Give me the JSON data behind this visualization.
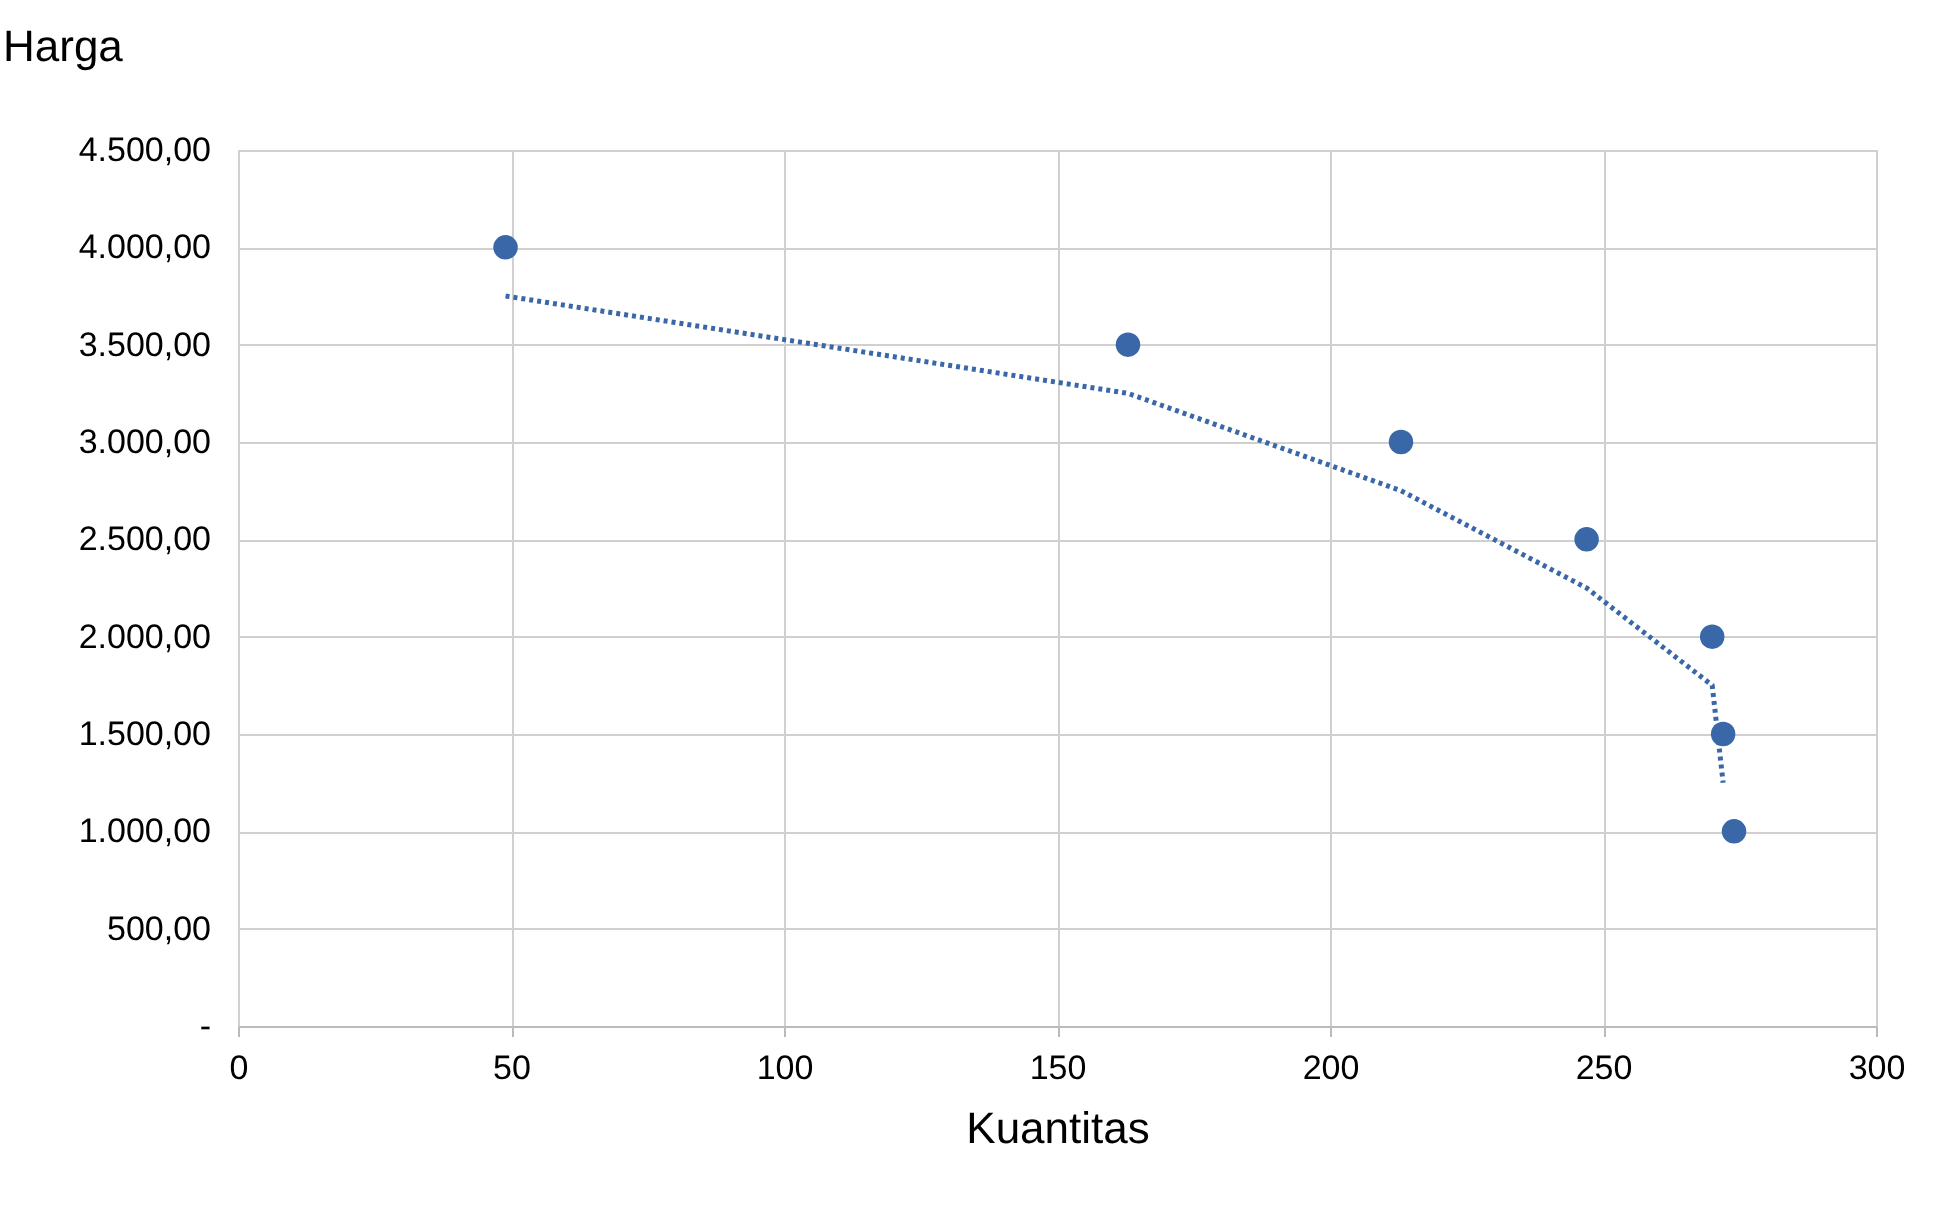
{
  "chart_data": {
    "type": "scatter",
    "xlabel": "Kuantitas",
    "ylabel": "Harga",
    "series": [
      {
        "color": "#3a67a8",
        "x": [
          49,
          163,
          213,
          247,
          270,
          272,
          274
        ],
        "values": [
          4000,
          3500,
          3000,
          2500,
          2000,
          1500,
          1000
        ]
      },
      {
        "type": "line",
        "color": "#3a67a8",
        "line_style": "dotted",
        "marker": "none",
        "x": [
          49,
          163,
          213,
          247,
          270,
          272
        ],
        "values": [
          3750,
          3250,
          2750,
          2250,
          1750,
          1250
        ]
      }
    ],
    "xlim": [
      0,
      300
    ],
    "xticks": [
      0,
      50,
      100,
      150,
      200,
      250,
      300
    ],
    "ylim": [
      0,
      4500
    ],
    "yticks": [
      {
        "value": 0,
        "label": "-"
      },
      {
        "value": 500,
        "label": "500,00"
      },
      {
        "value": 1000,
        "label": "1.000,00"
      },
      {
        "value": 1500,
        "label": "1.500,00"
      },
      {
        "value": 2000,
        "label": "2.000,00"
      },
      {
        "value": 2500,
        "label": "2.500,00"
      },
      {
        "value": 3000,
        "label": "3.000,00"
      },
      {
        "value": 3500,
        "label": "3.500,00"
      },
      {
        "value": 4000,
        "label": "4.000,00"
      },
      {
        "value": 4500,
        "label": "4.500,00"
      }
    ],
    "grid": true,
    "marker": "circle"
  }
}
